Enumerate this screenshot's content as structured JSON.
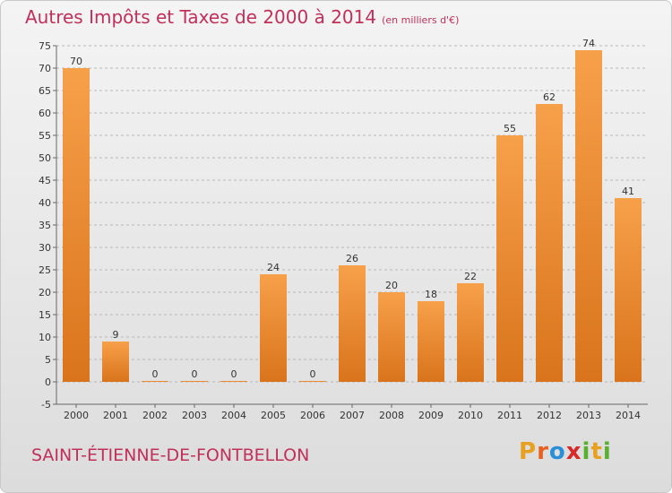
{
  "chart_data": {
    "type": "bar",
    "title": "Autres Impôts et Taxes de 2000 à 2014",
    "subtitle": "(en milliers d'€)",
    "xlabel": "",
    "ylabel": "",
    "categories": [
      "2000",
      "2001",
      "2002",
      "2003",
      "2004",
      "2005",
      "2006",
      "2007",
      "2008",
      "2009",
      "2010",
      "2011",
      "2012",
      "2013",
      "2014"
    ],
    "values": [
      70,
      9,
      0,
      0,
      0,
      24,
      0,
      26,
      20,
      18,
      22,
      55,
      62,
      74,
      41
    ],
    "ylim": [
      -5,
      75
    ],
    "yticks": [
      "-5",
      "0",
      "5",
      "10",
      "15",
      "20",
      "25",
      "30",
      "35",
      "40",
      "45",
      "50",
      "55",
      "60",
      "65",
      "70",
      "75"
    ],
    "grid": "horizontal dashed",
    "legend": "none",
    "bar_color": "#f28c28",
    "bar_color_dark": "#d4701a"
  },
  "footer": {
    "commune": "SAINT-ÉTIENNE-DE-FONTBELLON",
    "logo_letters": [
      "P",
      "r",
      "o",
      "x",
      "i",
      "t",
      "i"
    ],
    "logo_colors": [
      "#e8a020",
      "#e86020",
      "#2a8fd8",
      "#d82a2a",
      "#58b030",
      "#e8a020",
      "#58b030"
    ]
  }
}
